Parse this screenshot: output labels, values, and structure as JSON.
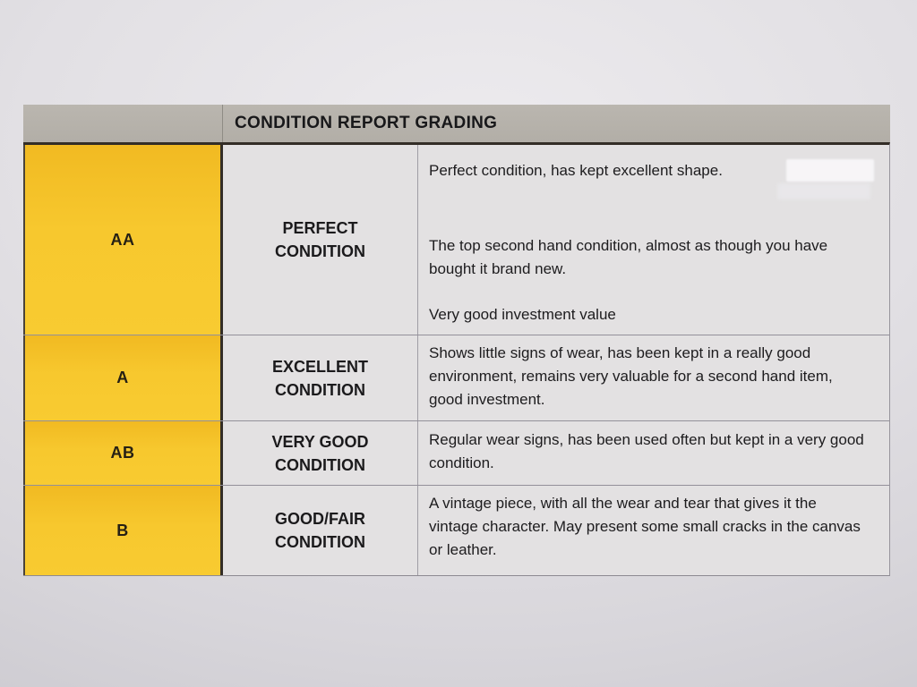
{
  "table": {
    "title": "CONDITION REPORT GRADING",
    "rows": [
      {
        "grade": "AA",
        "label": "PERFECT\nCONDITION",
        "paragraphs": [
          "Perfect condition, has kept excellent shape.",
          "The top second hand condition, almost as though you have bought it brand new.",
          "Very good investment value"
        ]
      },
      {
        "grade": "A",
        "label": "EXCELLENT\nCONDITION",
        "paragraphs": [
          "Shows little signs of wear, has been kept in a really good environment, remains very valuable for a second hand item, good investment."
        ]
      },
      {
        "grade": "AB",
        "label": "VERY GOOD\nCONDITION",
        "paragraphs": [
          "Regular wear signs, has been used often but kept in a very good condition."
        ]
      },
      {
        "grade": "B",
        "label": "GOOD/FAIR\nCONDITION",
        "paragraphs": [
          "A vintage piece, with all the wear and tear that gives it the vintage character. May present some small cracks in the canvas or leather."
        ]
      }
    ]
  },
  "colors": {
    "grade_column_yellow": "#f6c42a",
    "header_gray": "#b4b0a9",
    "cell_background": "#e3e1e2",
    "paper_background": "#dedce1",
    "text": "#1d1c1e"
  }
}
